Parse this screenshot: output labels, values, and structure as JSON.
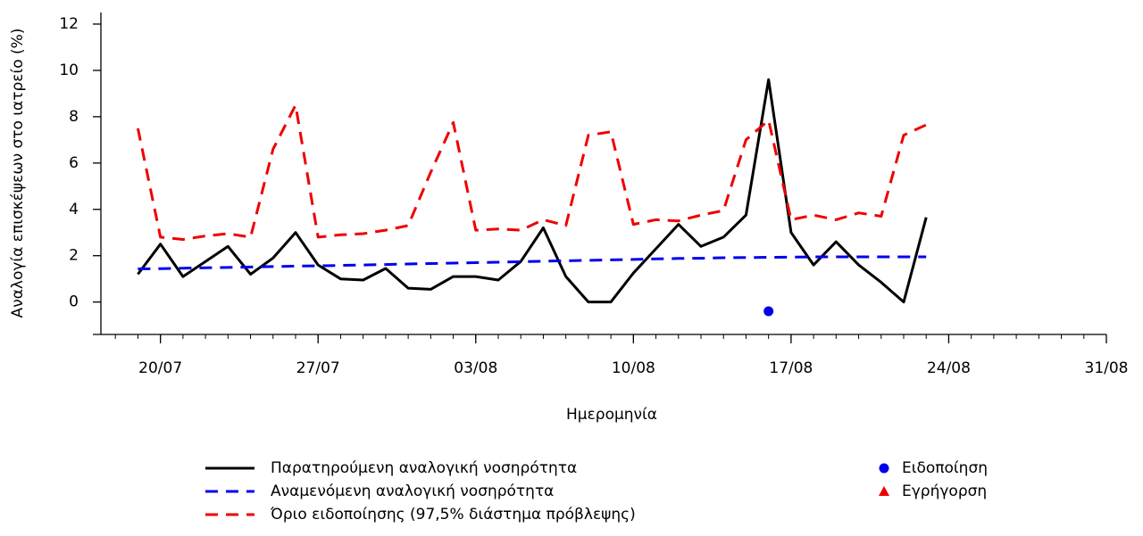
{
  "chart_data": {
    "type": "line",
    "y_label": "Αναλογία επισκέψεων στο ιατρείο (%)",
    "x_label": "Ημερομηνία",
    "x": [
      "19/07",
      "20/07",
      "21/07",
      "22/07",
      "23/07",
      "24/07",
      "25/07",
      "26/07",
      "27/07",
      "28/07",
      "29/07",
      "30/07",
      "31/07",
      "01/08",
      "02/08",
      "03/08",
      "04/08",
      "05/08",
      "06/08",
      "07/08",
      "08/08",
      "09/08",
      "10/08",
      "11/08",
      "12/08",
      "13/08",
      "14/08",
      "15/08",
      "16/08",
      "17/08",
      "18/08",
      "19/08",
      "20/08",
      "21/08",
      "22/08",
      "23/08"
    ],
    "series": [
      {
        "name": "Παρατηρούμενη αναλογική νοσηρότητα",
        "color": "#000000",
        "dashed": false,
        "values": [
          1.2,
          2.5,
          1.1,
          1.75,
          2.4,
          1.2,
          1.9,
          3.0,
          1.6,
          1.0,
          0.95,
          1.45,
          0.6,
          0.55,
          1.1,
          1.1,
          0.95,
          1.75,
          3.2,
          1.1,
          0,
          0,
          1.25,
          2.3,
          3.35,
          2.4,
          2.8,
          3.75,
          9.6,
          3.0,
          1.6,
          2.6,
          1.6,
          0.85,
          0,
          3.65
        ]
      },
      {
        "name": "Αναμενόμενη αναλογική νοσηρότητα",
        "color": "#0000ee",
        "dashed": true,
        "values": [
          1.43,
          1.44,
          1.46,
          1.48,
          1.49,
          1.51,
          1.53,
          1.55,
          1.56,
          1.58,
          1.6,
          1.62,
          1.64,
          1.66,
          1.68,
          1.7,
          1.72,
          1.74,
          1.76,
          1.78,
          1.8,
          1.82,
          1.84,
          1.86,
          1.88,
          1.89,
          1.91,
          1.92,
          1.93,
          1.94,
          1.95,
          1.95,
          1.95,
          1.95,
          1.95,
          1.95
        ]
      },
      {
        "name": "Όριο ειδοποίησης (97,5% διάστημα πρόβλεψης)",
        "color": "#ee0000",
        "dashed": true,
        "values": [
          7.5,
          2.8,
          2.7,
          2.85,
          2.95,
          2.8,
          6.6,
          8.5,
          2.8,
          2.9,
          2.95,
          3.1,
          3.3,
          5.6,
          7.75,
          3.1,
          3.15,
          3.1,
          3.55,
          3.3,
          7.2,
          7.35,
          3.35,
          3.55,
          3.5,
          3.75,
          3.95,
          7.0,
          7.85,
          3.55,
          3.75,
          3.55,
          3.85,
          3.7,
          7.2,
          7.65
        ]
      }
    ],
    "markers": [
      {
        "name": "Ειδοποίηση",
        "color": "#0000ee",
        "shape": "circle",
        "x": [
          "16/08"
        ],
        "values": [
          -0.4
        ]
      },
      {
        "name": "Εγρήγορση",
        "color": "#ee0000",
        "shape": "triangle",
        "x": [],
        "values": []
      }
    ],
    "xlim": [
      "17/07",
      "31/08"
    ],
    "xticks": [
      "20/07",
      "27/07",
      "03/08",
      "10/08",
      "17/08",
      "24/08",
      "31/08"
    ],
    "ylim": [
      -1.4,
      12.5
    ],
    "yticks": [
      0,
      2,
      4,
      6,
      8,
      10,
      12
    ]
  }
}
